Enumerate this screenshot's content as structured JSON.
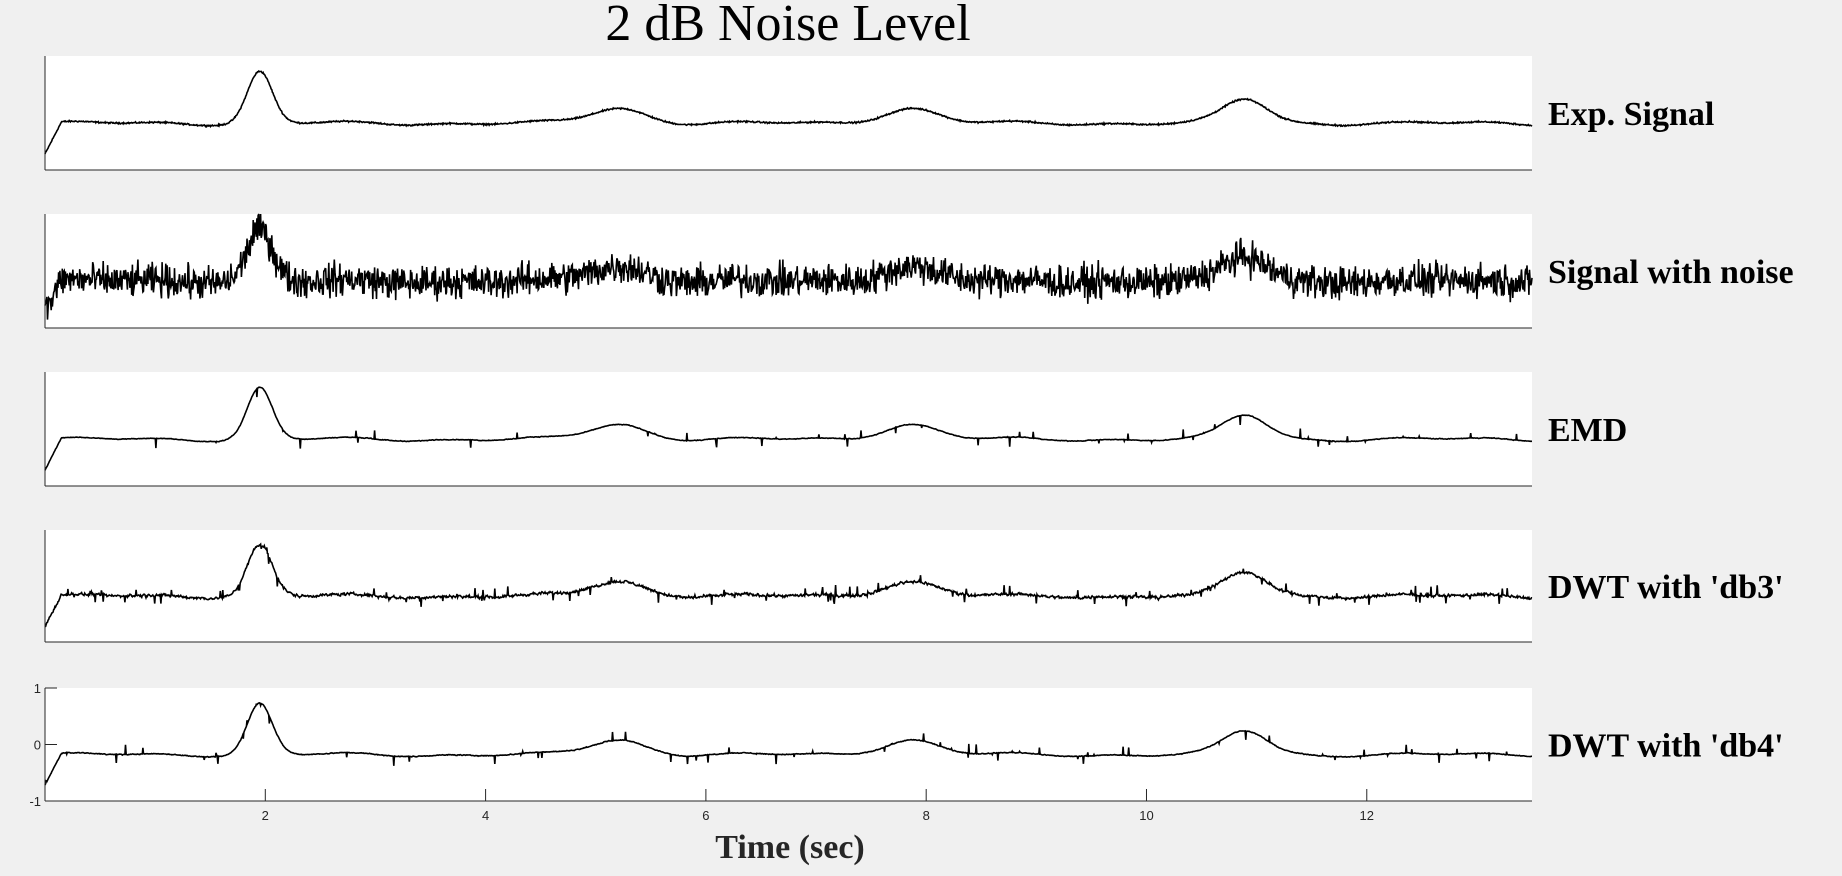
{
  "chart_data": {
    "type": "line",
    "title": "2 dB Noise Level",
    "xlabel": "Time (sec)",
    "xlim": [
      0,
      13.5
    ],
    "xticks": [
      2,
      4,
      6,
      8,
      10,
      12
    ],
    "xtick_labels": [
      "2",
      "4",
      "6",
      "8",
      "10",
      "12"
    ],
    "line_color": "#000000",
    "panels": [
      {
        "name": "Exp. Signal",
        "ylim": [
          -1,
          1
        ],
        "yticks": [],
        "ytick_labels": [],
        "noise": 0.01,
        "spikes": 0,
        "smooth": 0.0
      },
      {
        "name": "Signal with noise",
        "ylim": [
          -1,
          1
        ],
        "yticks": [],
        "ytick_labels": [],
        "noise": 0.22,
        "spikes": 0,
        "smooth": 0.0
      },
      {
        "name": "EMD",
        "ylim": [
          -1,
          1
        ],
        "yticks": [],
        "ytick_labels": [],
        "noise": 0.01,
        "spikes": 45,
        "smooth": 0.6
      },
      {
        "name": "DWT with 'db3'",
        "ylim": [
          -1,
          1
        ],
        "yticks": [],
        "ytick_labels": [],
        "noise": 0.03,
        "spikes": 110,
        "smooth": 0.4
      },
      {
        "name": "DWT with 'db4'",
        "ylim": [
          -1,
          1
        ],
        "yticks": [
          1,
          0,
          -1
        ],
        "ytick_labels": [
          "1",
          "0",
          "-1"
        ],
        "noise": 0.01,
        "spikes": 70,
        "smooth": 0.5
      }
    ],
    "peaks": [
      {
        "t": 1.95,
        "amp": 0.75,
        "width": 0.16
      },
      {
        "t": 5.2,
        "amp": 0.22,
        "width": 0.35
      },
      {
        "t": 7.85,
        "amp": 0.22,
        "width": 0.35
      },
      {
        "t": 10.9,
        "amp": 0.35,
        "width": 0.28
      }
    ]
  }
}
